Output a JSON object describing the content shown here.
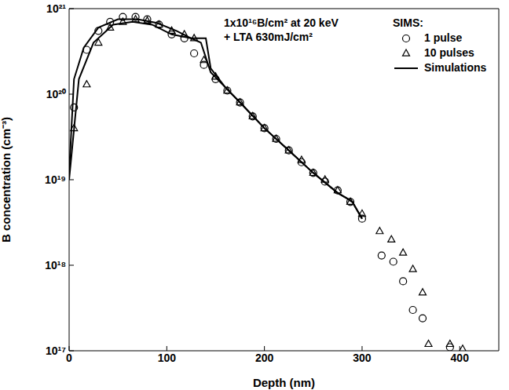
{
  "chart_data": {
    "type": "scatter",
    "ylabel": "B concentration (cm⁻³)",
    "xlabel": "Depth (nm)",
    "annotations": [
      "1x10¹⁶B/cm² at 20 keV",
      "+ LTA 630mJ/cm²"
    ],
    "legend_title": "SIMS:",
    "legend": "upper right",
    "log": "y",
    "grid": false,
    "xlim": [
      0,
      440
    ],
    "xticks": [
      0,
      100,
      200,
      300,
      400
    ],
    "ylim": [
      1e+17,
      1e+21
    ],
    "yticks": [
      {
        "value": 1e+17,
        "label": "10¹⁷"
      },
      {
        "value": 1e+18,
        "label": "10¹⁸"
      },
      {
        "value": 1e+19,
        "label": "10¹⁹"
      },
      {
        "value": 1e+20,
        "label": "10²⁰"
      },
      {
        "value": 1e+21,
        "label": "10²¹"
      }
    ],
    "series": [
      {
        "name": "1 pulse",
        "type": "scatter",
        "marker": "circle",
        "color": "#000000",
        "x": [
          5,
          18,
          30,
          42,
          55,
          68,
          80,
          92,
          105,
          118,
          128,
          138,
          150,
          162,
          175,
          188,
          200,
          212,
          225,
          238,
          250,
          262,
          275,
          288,
          300,
          320,
          332,
          342,
          352,
          362,
          390
        ],
        "values": [
          7e+19,
          3.3e+20,
          5.5e+20,
          7e+20,
          8e+20,
          8e+20,
          7.5e+20,
          6.5e+20,
          5e+20,
          4.5e+20,
          3e+20,
          2.2e+20,
          1.5e+20,
          1.1e+20,
          8e+19,
          5.5e+19,
          4e+19,
          3e+19,
          2.2e+19,
          1.6e+19,
          1.2e+19,
          9.5e+18,
          7.5e+18,
          5.5e+18,
          3.5e+18,
          1.3e+18,
          1.1e+18,
          6.5e+17,
          3e+17,
          2.4e+17,
          1.1e+17
        ]
      },
      {
        "name": "10 pulses",
        "type": "scatter",
        "marker": "triangle",
        "color": "#000000",
        "x": [
          5,
          18,
          30,
          42,
          55,
          68,
          80,
          92,
          105,
          118,
          128,
          138,
          150,
          162,
          175,
          188,
          200,
          212,
          225,
          238,
          250,
          262,
          275,
          288,
          300,
          318,
          330,
          342,
          352,
          362,
          368,
          390,
          403
        ],
        "values": [
          4e+19,
          1.3e+20,
          4e+20,
          6e+20,
          7e+20,
          7.5e+20,
          7.2e+20,
          6.5e+20,
          5.5e+20,
          5e+20,
          4.5e+20,
          2.5e+20,
          1.6e+20,
          1.1e+20,
          8e+19,
          5.5e+19,
          4e+19,
          3e+19,
          2.2e+19,
          1.7e+19,
          1.2e+19,
          1e+19,
          7.5e+18,
          5.5e+18,
          4e+18,
          2.5e+18,
          2e+18,
          1.4e+18,
          9e+17,
          4.8e+17,
          1.2e+17,
          1.2e+17,
          1.05e+17
        ]
      },
      {
        "name": "Simulations",
        "type": "line",
        "line_style": "solid",
        "color": "#000000",
        "x": [
          0,
          5,
          15,
          30,
          50,
          70,
          90,
          110,
          125,
          135,
          145,
          160,
          175,
          200,
          225,
          250,
          275,
          285,
          290,
          300
        ],
        "values": [
          1.2e+19,
          1.5e+20,
          3.5e+20,
          6e+20,
          7.5e+20,
          7.5e+20,
          6.8e+20,
          5.5e+20,
          4.5e+20,
          4e+20,
          1.8e+20,
          1.2e+20,
          8e+19,
          4e+19,
          2.2e+19,
          1.2e+19,
          7e+18,
          6e+18,
          5.5e+18,
          3.5e+18
        ]
      },
      {
        "name": "Simulations",
        "type": "line",
        "line_style": "solid",
        "color": "#000000",
        "x": [
          0,
          10,
          25,
          45,
          65,
          85,
          105,
          125,
          140,
          145,
          160,
          175,
          200,
          225,
          250,
          275,
          285,
          290,
          300
        ],
        "values": [
          1e+19,
          1.5e+20,
          4e+20,
          6.5e+20,
          7e+20,
          6.5e+20,
          5e+20,
          4.5e+20,
          4.5e+20,
          2e+20,
          1.2e+20,
          8e+19,
          4e+19,
          2.2e+19,
          1.2e+19,
          7e+18,
          6e+18,
          5.5e+18,
          3.5e+18
        ]
      }
    ]
  }
}
